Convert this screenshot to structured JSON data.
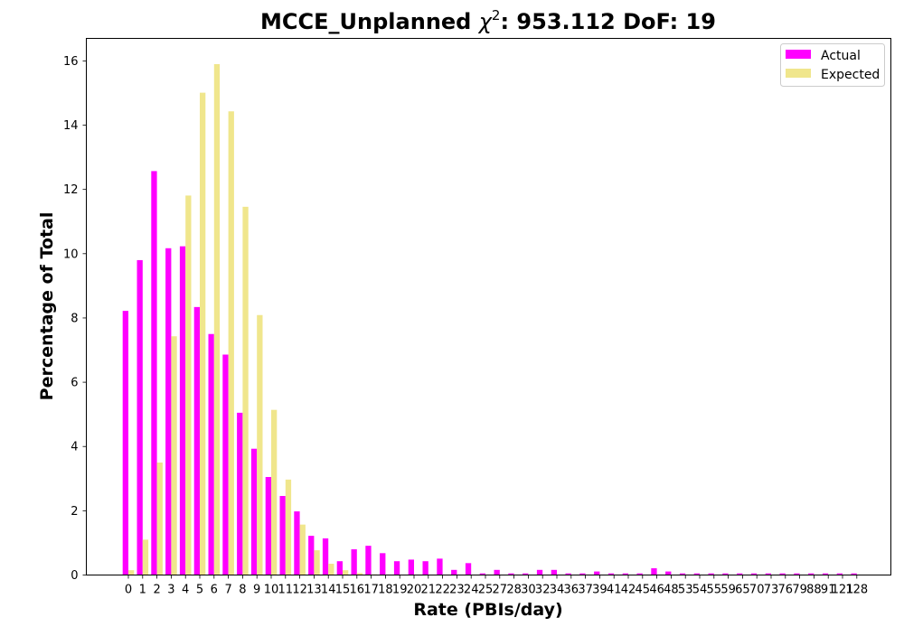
{
  "chart_data": {
    "type": "bar",
    "title": "MCCE_Unplanned χ²: 953.112 DoF: 19",
    "title_parts": {
      "prefix": "MCCE_Unplanned ",
      "chi": "χ",
      "sup": "2",
      "suffix": ": 953.112 DoF: 19"
    },
    "xlabel": "Rate (PBIs/day)",
    "ylabel": "Percentage of Total",
    "ylim": [
      0,
      16.7
    ],
    "yticks": [
      0,
      2,
      4,
      6,
      8,
      10,
      12,
      14,
      16
    ],
    "grid": false,
    "legend_placement": "top-right",
    "categories": [
      "0",
      "1",
      "2",
      "3",
      "4",
      "5",
      "6",
      "7",
      "8",
      "9",
      "10",
      "11",
      "12",
      "13",
      "14",
      "15",
      "16",
      "17",
      "18",
      "19",
      "20",
      "21",
      "22",
      "23",
      "24",
      "25",
      "27",
      "28",
      "30",
      "32",
      "34",
      "36",
      "37",
      "39",
      "41",
      "42",
      "45",
      "46",
      "48",
      "53",
      "54",
      "55",
      "59",
      "65",
      "70",
      "73",
      "76",
      "79",
      "88",
      "91",
      "121",
      "128"
    ],
    "series": [
      {
        "name": "Actual",
        "color": "#ff00ff",
        "values": [
          8.22,
          9.8,
          12.57,
          10.17,
          10.23,
          8.34,
          7.5,
          6.86,
          5.05,
          3.93,
          3.05,
          2.46,
          1.98,
          1.22,
          1.14,
          0.43,
          0.8,
          0.91,
          0.68,
          0.43,
          0.48,
          0.43,
          0.51,
          0.16,
          0.37,
          0.05,
          0.16,
          0.05,
          0.05,
          0.16,
          0.16,
          0.05,
          0.05,
          0.11,
          0.05,
          0.05,
          0.05,
          0.21,
          0.11,
          0.05,
          0.05,
          0.05,
          0.05,
          0.05,
          0.05,
          0.05,
          0.05,
          0.05,
          0.05,
          0.05,
          0.05,
          0.05
        ]
      },
      {
        "name": "Expected",
        "color": "#f0e68c",
        "values": [
          0.15,
          1.1,
          3.5,
          7.43,
          11.81,
          15.01,
          15.9,
          14.43,
          11.46,
          8.09,
          5.14,
          2.97,
          1.57,
          0.77,
          0.35,
          0.15,
          0.06,
          0.02,
          0.01,
          0,
          0,
          0,
          0,
          0,
          0,
          0,
          0,
          0,
          0,
          0,
          0,
          0,
          0,
          0,
          0,
          0,
          0,
          0,
          0,
          0,
          0,
          0,
          0,
          0,
          0,
          0,
          0,
          0,
          0,
          0,
          0,
          0
        ]
      }
    ]
  }
}
